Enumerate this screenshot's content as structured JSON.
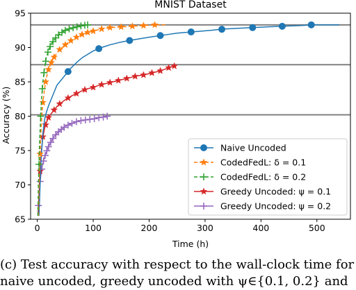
{
  "chart_data": {
    "type": "line",
    "title": "MNIST Dataset",
    "xlabel": "Time (h)",
    "ylabel": "Accuracy (%)",
    "xlim": [
      -12,
      560
    ],
    "ylim": [
      65,
      95
    ],
    "xticks": [
      0,
      100,
      200,
      300,
      400,
      500
    ],
    "yticks": [
      65,
      70,
      75,
      80,
      85,
      90,
      95
    ],
    "legend_position": "lower-right",
    "grid": false,
    "hlines": [
      93.3,
      87.5,
      80.2
    ],
    "series": [
      {
        "name": "Naive Uncoded",
        "color": "#1f77b4",
        "linestyle": "solid",
        "marker": "circle",
        "x": [
          3,
          5,
          7,
          10,
          13,
          16,
          20,
          25,
          30,
          35,
          40,
          45,
          50,
          55,
          60,
          70,
          80,
          90,
          100,
          115,
          130,
          150,
          170,
          200,
          225,
          250,
          280,
          310,
          335,
          360,
          385,
          410,
          440,
          470,
          490,
          520,
          540
        ],
        "y": [
          65.5,
          70.0,
          74.0,
          77.5,
          79.5,
          80.5,
          81.5,
          82.5,
          83.5,
          84.5,
          85.0,
          85.5,
          86.0,
          86.5,
          87.0,
          87.8,
          88.5,
          89.0,
          89.5,
          90.0,
          90.4,
          90.8,
          91.1,
          91.5,
          91.8,
          92.1,
          92.3,
          92.5,
          92.7,
          92.8,
          92.9,
          93.0,
          93.1,
          93.2,
          93.3,
          93.3,
          93.3
        ],
        "marker_x": [
          55,
          110,
          165,
          220,
          275,
          330,
          385,
          438,
          490
        ]
      },
      {
        "name": "CodedFedL: δ = 0.1",
        "color": "#ff7f0e",
        "linestyle": "dashed",
        "marker": "star",
        "x": [
          2,
          4,
          6,
          8,
          10,
          13,
          16,
          20,
          25,
          30,
          35,
          40,
          50,
          60,
          70,
          80,
          90,
          100,
          115,
          130,
          150,
          170,
          190,
          210,
          230
        ],
        "y": [
          65.5,
          72.0,
          77.0,
          80.0,
          82.0,
          84.0,
          85.5,
          86.8,
          87.8,
          88.6,
          89.2,
          89.7,
          90.4,
          91.0,
          91.5,
          91.9,
          92.2,
          92.4,
          92.7,
          92.9,
          93.0,
          93.1,
          93.2,
          93.3,
          93.3
        ],
        "marker_x": [
          5,
          10,
          15,
          20,
          25,
          30,
          40,
          50,
          60,
          70,
          80,
          90,
          100,
          115,
          130,
          150,
          170,
          190,
          210
        ]
      },
      {
        "name": "CodedFedL: δ = 0.2",
        "color": "#2ca02c",
        "linestyle": "dashed",
        "marker": "plus",
        "x": [
          1,
          2,
          4,
          6,
          8,
          10,
          13,
          16,
          20,
          25,
          30,
          35,
          40,
          50,
          60,
          70,
          80,
          90
        ],
        "y": [
          65.5,
          70.0,
          76.0,
          80.0,
          83.0,
          85.0,
          87.0,
          88.5,
          89.6,
          90.5,
          91.1,
          91.6,
          92.0,
          92.5,
          92.8,
          93.0,
          93.2,
          93.3
        ],
        "marker_x": [
          3,
          6,
          9,
          12,
          15,
          19,
          23,
          28,
          33,
          38,
          44,
          50,
          57,
          64,
          71,
          78,
          85,
          90
        ]
      },
      {
        "name": "Greedy Uncoded: ψ = 0.1",
        "color": "#d62728",
        "linestyle": "solid",
        "marker": "star",
        "x": [
          2,
          4,
          6,
          8,
          10,
          13,
          16,
          20,
          25,
          30,
          35,
          40,
          50,
          60,
          70,
          80,
          90,
          100,
          110,
          120,
          130,
          140,
          150,
          160,
          170,
          180,
          190,
          200,
          210,
          220,
          230,
          240,
          245
        ],
        "y": [
          65.5,
          70.5,
          73.5,
          75.5,
          77.0,
          78.2,
          79.0,
          79.8,
          80.4,
          80.9,
          81.4,
          81.8,
          82.4,
          82.9,
          83.3,
          83.7,
          84.0,
          84.2,
          84.5,
          84.7,
          84.9,
          85.1,
          85.3,
          85.5,
          85.7,
          85.9,
          86.0,
          86.2,
          86.4,
          86.6,
          86.9,
          87.2,
          87.3
        ],
        "marker_x": [
          5,
          10,
          15,
          20,
          30,
          40,
          55,
          70,
          85,
          100,
          115,
          130,
          145,
          160,
          175,
          190,
          205,
          220,
          235,
          245
        ]
      },
      {
        "name": "Greedy Uncoded: ψ = 0.2",
        "color": "#9467bd",
        "linestyle": "solid",
        "marker": "plus",
        "x": [
          1,
          3,
          5,
          7,
          9,
          12,
          15,
          18,
          22,
          26,
          30,
          35,
          40,
          45,
          50,
          60,
          70,
          80,
          90,
          100,
          110,
          120,
          125
        ],
        "y": [
          65.5,
          68.5,
          70.5,
          71.8,
          72.8,
          73.8,
          74.5,
          75.2,
          75.9,
          76.5,
          77.0,
          77.5,
          77.9,
          78.2,
          78.5,
          78.9,
          79.2,
          79.4,
          79.5,
          79.6,
          79.8,
          79.9,
          80.0
        ],
        "marker_x": [
          2,
          5,
          8,
          11,
          14,
          17,
          20,
          24,
          28,
          33,
          38,
          43,
          48,
          55,
          62,
          70,
          78,
          86,
          94,
          102,
          110,
          118,
          125
        ]
      }
    ]
  },
  "caption": {
    "line1": "(c) Test accuracy with respect to the wall-clock time for",
    "line2": "naive uncoded, greedy uncoded with ψ∈{0.1, 0.2} and"
  }
}
